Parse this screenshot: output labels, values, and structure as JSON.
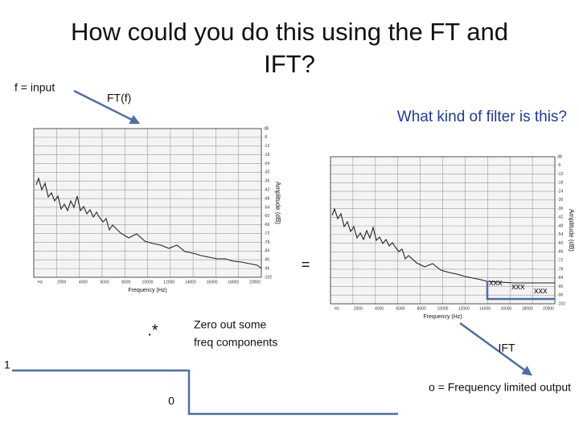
{
  "title": [
    "How could you do this using the FT and",
    "IFT?"
  ],
  "labels": {
    "input": "f = input",
    "ft": "FT(f)",
    "question": "What kind of filter is this?",
    "equals": "=",
    "multiply": ".*",
    "zero_out": [
      "Zero out some",
      "freq components"
    ],
    "ift": "IFT",
    "one": "1",
    "zero": "0",
    "output": "o = Frequency limited output"
  },
  "plots": [
    {
      "x_label": "Frequency (Hz)",
      "y_label": "Amplitude (dB)",
      "x_ticks": [
        "Hz",
        "2000",
        "4000",
        "6000",
        "8000",
        "10000",
        "12000",
        "14000",
        "16000",
        "18000",
        "20000"
      ],
      "y_ticks": [
        "dB",
        "-6",
        "-12",
        "-18",
        "-24",
        "-30",
        "-36",
        "-42",
        "-48",
        "-54",
        "-60",
        "-66",
        "-72",
        "-78",
        "-84",
        "-90",
        "-96",
        "-102"
      ]
    },
    {
      "x_label": "Frequency (Hz)",
      "y_label": "Amplitude (dB)",
      "x_ticks": [
        "Hz",
        "2000",
        "4000",
        "6000",
        "8000",
        "10000",
        "12000",
        "14000",
        "16000",
        "18000",
        "20000"
      ],
      "y_ticks": [
        "dB",
        "-6",
        "-12",
        "-18",
        "-24",
        "-30",
        "-36",
        "-42",
        "-48",
        "-54",
        "-60",
        "-66",
        "-72",
        "-78",
        "-84",
        "-90",
        "-96",
        "-102"
      ],
      "marks": [
        "xxx",
        "xxx",
        "xxx"
      ]
    }
  ]
}
